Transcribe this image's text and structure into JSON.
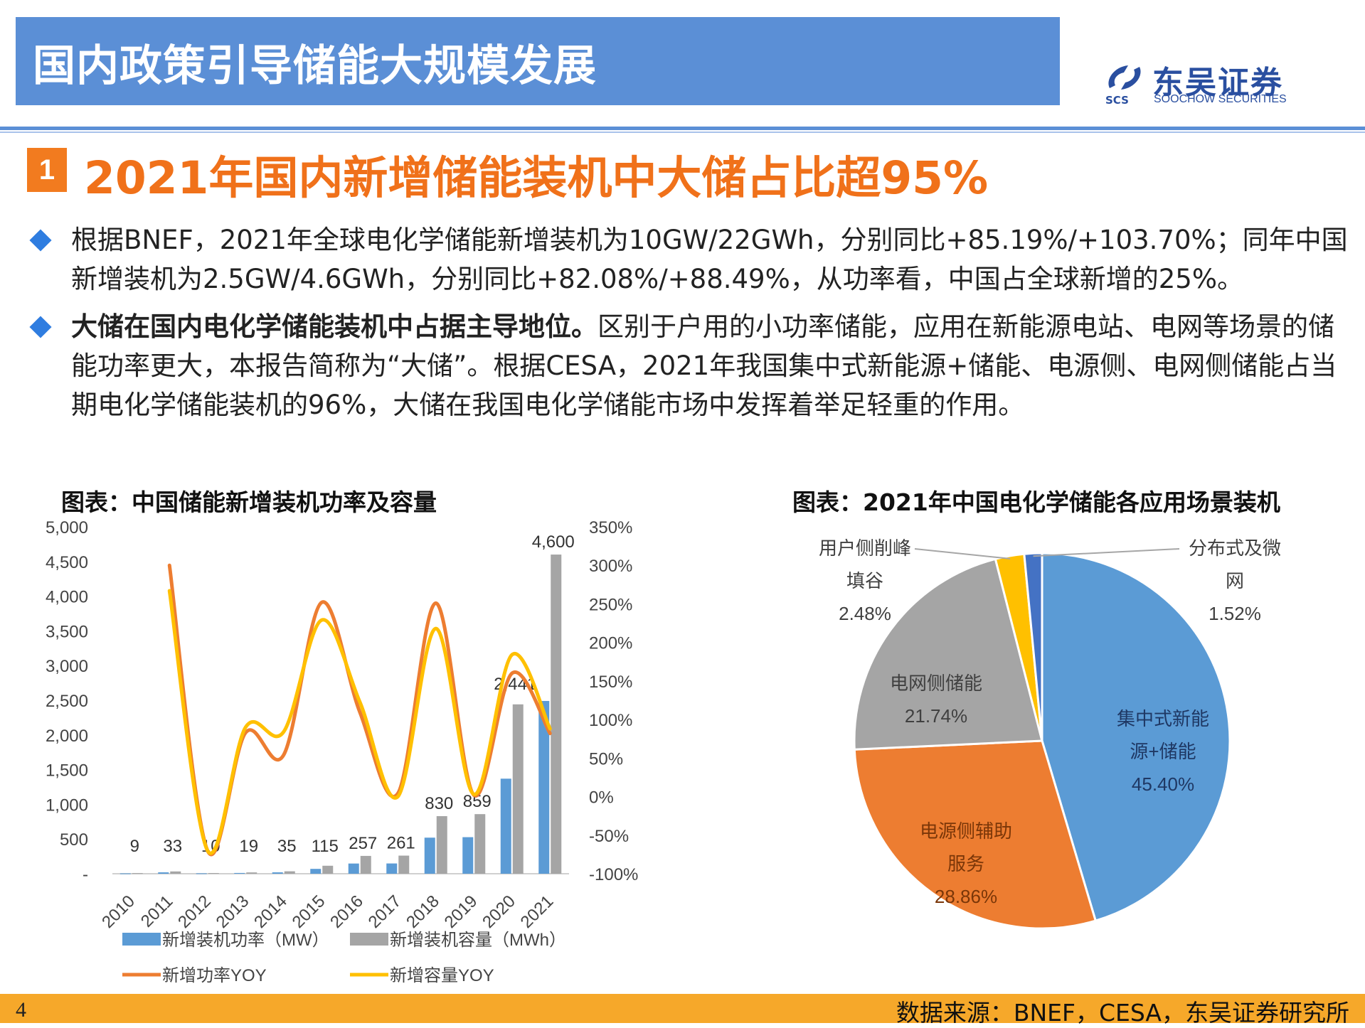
{
  "header": {
    "title": "国内政策引导储能大规模发展"
  },
  "logo": {
    "abbr": "SCS",
    "cn": "东吴证券",
    "en": "SOOCHOW SECURITIES"
  },
  "section": {
    "number": "1",
    "title": "2021年国内新增储能装机中大储占比超95%"
  },
  "bullets": [
    {
      "bold": "",
      "text": "根据BNEF，2021年全球电化学储能新增装机为10GW/22GWh，分别同比+85.19%/+103.70%；同年中国新增装机为2.5GW/4.6GWh，分别同比+82.08%/+88.49%，从功率看，中国占全球新增的25%。"
    },
    {
      "bold": "大储在国内电化学储能装机中占据主导地位。",
      "text": "区别于户用的小功率储能，应用在新能源电站、电网等场景的储能功率更大，本报告简称为“大储”。根据CESA，2021年我国集中式新能源+储能、电源侧、电网侧储能占当期电化学储能装机的96%，大储在我国电化学储能市场中发挥着举足轻重的作用。"
    }
  ],
  "footer": {
    "page": "4",
    "source": "数据来源：BNEF，CESA，东吴证券研究所"
  },
  "chart_data": [
    {
      "type": "bar",
      "title": "图表：中国储能新增装机功率及容量",
      "categories": [
        "2010",
        "2011",
        "2012",
        "2013",
        "2014",
        "2015",
        "2016",
        "2017",
        "2018",
        "2019",
        "2020",
        "2021"
      ],
      "left_axis": {
        "ticks": [
          "5,000",
          "4,500",
          "4,000",
          "3,500",
          "3,000",
          "2,500",
          "2,000",
          "1,500",
          "1,000",
          "500",
          "-"
        ],
        "ylim": [
          0,
          5000
        ]
      },
      "right_axis": {
        "ticks": [
          "350%",
          "300%",
          "250%",
          "200%",
          "150%",
          "100%",
          "50%",
          "0%",
          "-50%",
          "-100%"
        ],
        "ylim": [
          -100,
          350
        ]
      },
      "series": [
        {
          "name": "新增装机功率（MW）",
          "axis": "left",
          "kind": "bar",
          "color": "#5b9bd5",
          "values": [
            5,
            20,
            6,
            11,
            20,
            70,
            147,
            148,
            520,
            527,
            1370,
            2490
          ]
        },
        {
          "name": "新增装机容量（MWh）",
          "axis": "left",
          "kind": "bar",
          "color": "#a5a5a5",
          "values": [
            9,
            33,
            10,
            19,
            35,
            115,
            257,
            261,
            830,
            859,
            2441,
            4600
          ],
          "labels": [
            "9",
            "33",
            "10",
            "19",
            "35",
            "115",
            "257",
            "261",
            "830",
            "859",
            "2,441",
            "4,600"
          ]
        },
        {
          "name": "新增功率YOY",
          "axis": "right",
          "kind": "line",
          "color": "#ed7d31",
          "values": [
            null,
            300,
            -70,
            83,
            54,
            252,
            110,
            4,
            251,
            2,
            160,
            82
          ]
        },
        {
          "name": "新增容量YOY",
          "axis": "right",
          "kind": "line",
          "color": "#ffc000",
          "values": [
            null,
            267,
            -70,
            90,
            84,
            229,
            123,
            0,
            218,
            3,
            184,
            88
          ]
        }
      ],
      "legend": "bottom"
    },
    {
      "type": "pie",
      "title": "图表：2021年中国电化学储能各应用场景装机",
      "slices": [
        {
          "label_lines": [
            "集中式新能",
            "源+储能"
          ],
          "value": 45.4,
          "label_pct": "45.40%",
          "color": "#5b9bd5",
          "label_color": "#1f3864"
        },
        {
          "label_lines": [
            "电源侧辅助",
            "服务"
          ],
          "value": 28.86,
          "label_pct": "28.86%",
          "color": "#ed7d31",
          "label_color": "#7a3608"
        },
        {
          "label_lines": [
            "电网侧储能"
          ],
          "value": 21.74,
          "label_pct": "21.74%",
          "color": "#a5a5a5",
          "label_color": "#404040"
        },
        {
          "label_lines": [
            "用户侧削峰",
            "填谷"
          ],
          "value": 2.48,
          "label_pct": "2.48%",
          "color": "#ffc000",
          "label_color": "#404040"
        },
        {
          "label_lines": [
            "分布式及微",
            "网"
          ],
          "value": 1.52,
          "label_pct": "1.52%",
          "color": "#4472c4",
          "label_color": "#404040"
        }
      ]
    }
  ]
}
